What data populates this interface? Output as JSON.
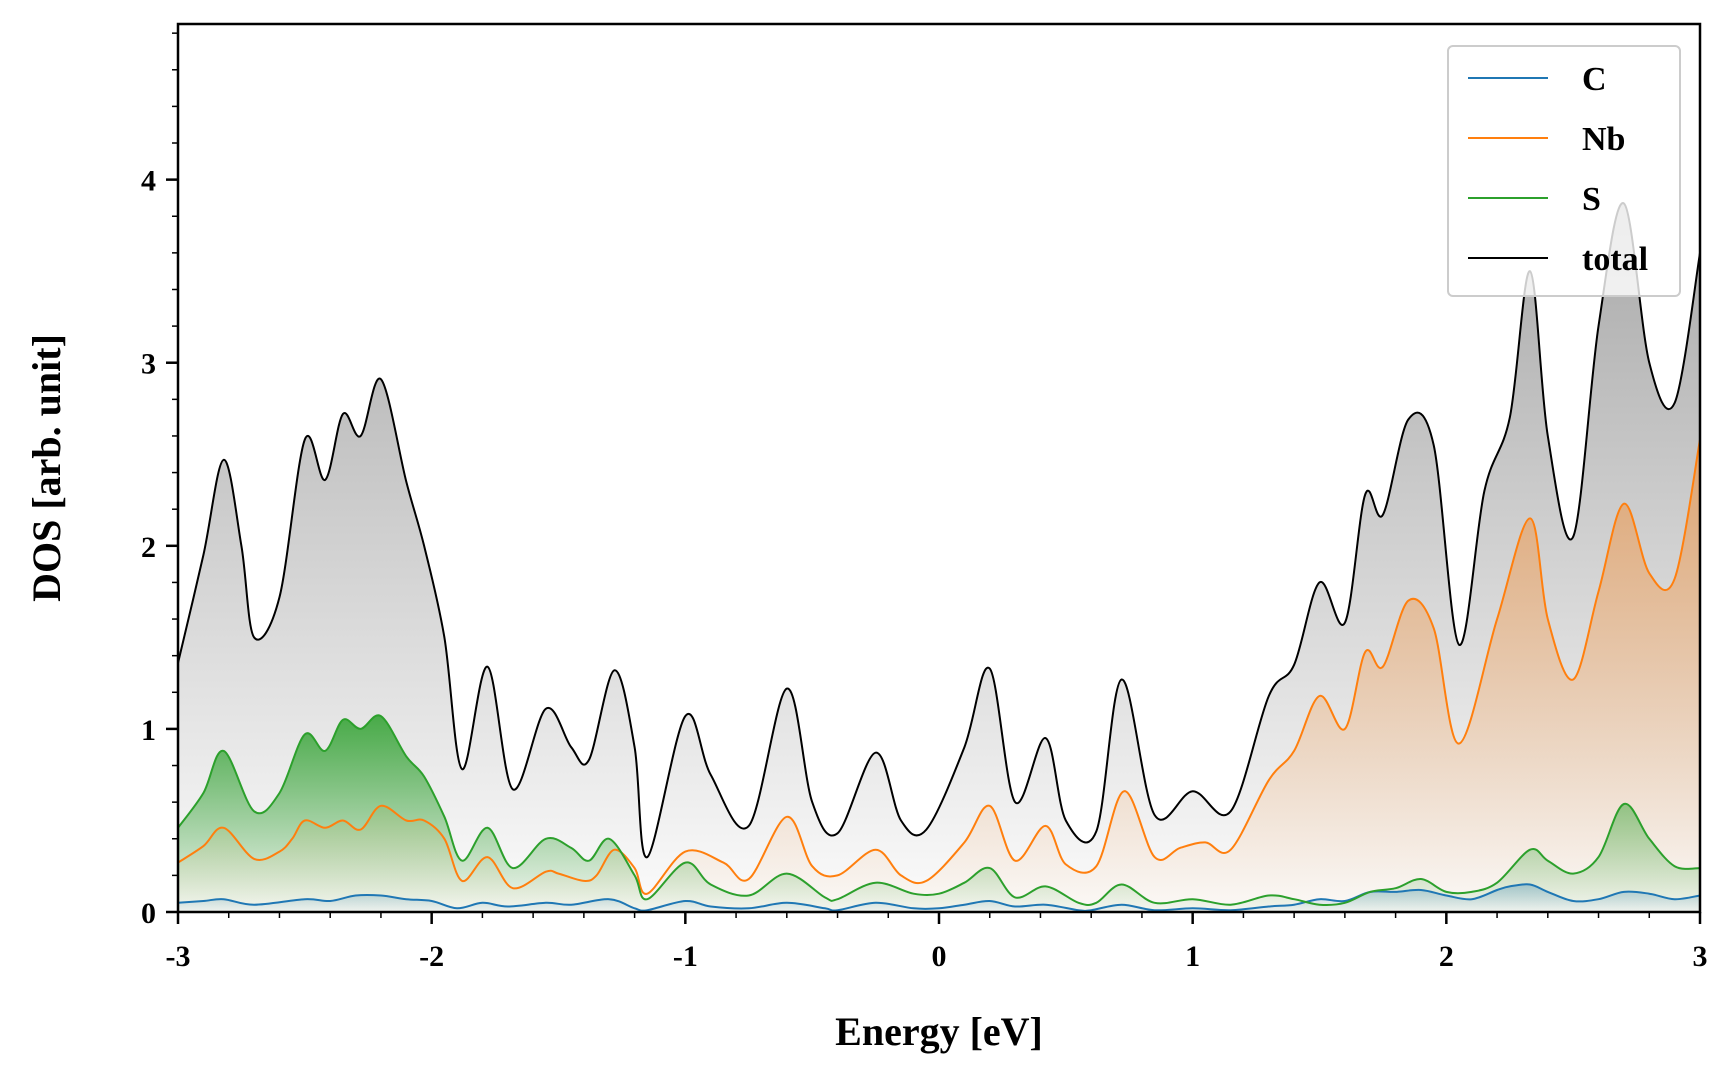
{
  "chart_data": {
    "type": "area",
    "xlabel": "Energy [eV]",
    "ylabel": "DOS [arb. unit]",
    "xlim": [
      -3,
      3
    ],
    "ylim": [
      0,
      4.85
    ],
    "x_ticks": [
      "-3",
      "-2",
      "-1",
      "0",
      "1",
      "2",
      "3"
    ],
    "y_ticks": [
      "0",
      "1",
      "2",
      "3",
      "4"
    ],
    "legend_position": "top-right",
    "grid": false,
    "series": [
      {
        "name": "C",
        "color": "#1f77b4",
        "points": [
          [
            -3,
            0.05
          ],
          [
            -2.9,
            0.06
          ],
          [
            -2.82,
            0.07
          ],
          [
            -2.7,
            0.04
          ],
          [
            -2.5,
            0.07
          ],
          [
            -2.4,
            0.06
          ],
          [
            -2.3,
            0.09
          ],
          [
            -2.2,
            0.09
          ],
          [
            -2.1,
            0.07
          ],
          [
            -2.0,
            0.06
          ],
          [
            -1.9,
            0.02
          ],
          [
            -1.8,
            0.05
          ],
          [
            -1.7,
            0.03
          ],
          [
            -1.55,
            0.05
          ],
          [
            -1.45,
            0.04
          ],
          [
            -1.3,
            0.07
          ],
          [
            -1.2,
            0.02
          ],
          [
            -1.15,
            0.01
          ],
          [
            -1.0,
            0.06
          ],
          [
            -0.9,
            0.03
          ],
          [
            -0.75,
            0.02
          ],
          [
            -0.6,
            0.05
          ],
          [
            -0.45,
            0.02
          ],
          [
            -0.4,
            0.01
          ],
          [
            -0.25,
            0.05
          ],
          [
            -0.1,
            0.02
          ],
          [
            0,
            0.02
          ],
          [
            0.1,
            0.04
          ],
          [
            0.2,
            0.06
          ],
          [
            0.3,
            0.03
          ],
          [
            0.42,
            0.04
          ],
          [
            0.55,
            0.01
          ],
          [
            0.6,
            0.01
          ],
          [
            0.72,
            0.04
          ],
          [
            0.85,
            0.01
          ],
          [
            1.0,
            0.02
          ],
          [
            1.15,
            0.01
          ],
          [
            1.3,
            0.03
          ],
          [
            1.4,
            0.04
          ],
          [
            1.5,
            0.07
          ],
          [
            1.6,
            0.06
          ],
          [
            1.7,
            0.11
          ],
          [
            1.8,
            0.11
          ],
          [
            1.9,
            0.12
          ],
          [
            2.0,
            0.09
          ],
          [
            2.1,
            0.07
          ],
          [
            2.2,
            0.12
          ],
          [
            2.25,
            0.14
          ],
          [
            2.33,
            0.15
          ],
          [
            2.4,
            0.11
          ],
          [
            2.5,
            0.06
          ],
          [
            2.6,
            0.07
          ],
          [
            2.7,
            0.11
          ],
          [
            2.8,
            0.1
          ],
          [
            2.9,
            0.07
          ],
          [
            3.0,
            0.09
          ]
        ]
      },
      {
        "name": "Nb",
        "color": "#ff7f0e",
        "points": [
          [
            -3,
            0.27
          ],
          [
            -2.9,
            0.36
          ],
          [
            -2.82,
            0.46
          ],
          [
            -2.7,
            0.29
          ],
          [
            -2.6,
            0.33
          ],
          [
            -2.55,
            0.4
          ],
          [
            -2.5,
            0.5
          ],
          [
            -2.42,
            0.46
          ],
          [
            -2.35,
            0.5
          ],
          [
            -2.28,
            0.45
          ],
          [
            -2.2,
            0.58
          ],
          [
            -2.1,
            0.5
          ],
          [
            -2.03,
            0.5
          ],
          [
            -1.95,
            0.4
          ],
          [
            -1.88,
            0.17
          ],
          [
            -1.78,
            0.3
          ],
          [
            -1.68,
            0.13
          ],
          [
            -1.55,
            0.22
          ],
          [
            -1.5,
            0.21
          ],
          [
            -1.4,
            0.17
          ],
          [
            -1.35,
            0.2
          ],
          [
            -1.28,
            0.34
          ],
          [
            -1.2,
            0.24
          ],
          [
            -1.15,
            0.1
          ],
          [
            -1.0,
            0.33
          ],
          [
            -0.85,
            0.27
          ],
          [
            -0.75,
            0.18
          ],
          [
            -0.6,
            0.52
          ],
          [
            -0.5,
            0.25
          ],
          [
            -0.4,
            0.2
          ],
          [
            -0.25,
            0.34
          ],
          [
            -0.15,
            0.2
          ],
          [
            -0.05,
            0.17
          ],
          [
            0.1,
            0.38
          ],
          [
            0.2,
            0.58
          ],
          [
            0.3,
            0.28
          ],
          [
            0.42,
            0.47
          ],
          [
            0.5,
            0.26
          ],
          [
            0.62,
            0.25
          ],
          [
            0.73,
            0.66
          ],
          [
            0.85,
            0.3
          ],
          [
            0.95,
            0.35
          ],
          [
            1.05,
            0.38
          ],
          [
            1.15,
            0.34
          ],
          [
            1.3,
            0.72
          ],
          [
            1.4,
            0.88
          ],
          [
            1.5,
            1.18
          ],
          [
            1.6,
            1.0
          ],
          [
            1.68,
            1.42
          ],
          [
            1.75,
            1.34
          ],
          [
            1.85,
            1.7
          ],
          [
            1.95,
            1.55
          ],
          [
            2.05,
            0.92
          ],
          [
            2.2,
            1.6
          ],
          [
            2.33,
            2.15
          ],
          [
            2.4,
            1.6
          ],
          [
            2.5,
            1.27
          ],
          [
            2.6,
            1.75
          ],
          [
            2.7,
            2.23
          ],
          [
            2.8,
            1.85
          ],
          [
            2.9,
            1.82
          ],
          [
            3.0,
            2.58
          ]
        ]
      },
      {
        "name": "S",
        "color": "#2ca02c",
        "points": [
          [
            -3,
            0.46
          ],
          [
            -2.9,
            0.65
          ],
          [
            -2.82,
            0.88
          ],
          [
            -2.7,
            0.55
          ],
          [
            -2.6,
            0.65
          ],
          [
            -2.5,
            0.97
          ],
          [
            -2.42,
            0.88
          ],
          [
            -2.35,
            1.05
          ],
          [
            -2.28,
            1.0
          ],
          [
            -2.2,
            1.07
          ],
          [
            -2.1,
            0.85
          ],
          [
            -2.03,
            0.74
          ],
          [
            -1.95,
            0.52
          ],
          [
            -1.88,
            0.28
          ],
          [
            -1.78,
            0.46
          ],
          [
            -1.68,
            0.24
          ],
          [
            -1.55,
            0.4
          ],
          [
            -1.45,
            0.35
          ],
          [
            -1.38,
            0.28
          ],
          [
            -1.3,
            0.4
          ],
          [
            -1.2,
            0.2
          ],
          [
            -1.15,
            0.07
          ],
          [
            -1.0,
            0.27
          ],
          [
            -0.9,
            0.15
          ],
          [
            -0.75,
            0.09
          ],
          [
            -0.6,
            0.21
          ],
          [
            -0.45,
            0.08
          ],
          [
            -0.4,
            0.07
          ],
          [
            -0.25,
            0.16
          ],
          [
            -0.1,
            0.1
          ],
          [
            0,
            0.1
          ],
          [
            0.1,
            0.16
          ],
          [
            0.2,
            0.24
          ],
          [
            0.3,
            0.08
          ],
          [
            0.42,
            0.14
          ],
          [
            0.55,
            0.05
          ],
          [
            0.62,
            0.05
          ],
          [
            0.72,
            0.15
          ],
          [
            0.85,
            0.05
          ],
          [
            1.0,
            0.07
          ],
          [
            1.15,
            0.04
          ],
          [
            1.3,
            0.09
          ],
          [
            1.4,
            0.07
          ],
          [
            1.5,
            0.04
          ],
          [
            1.6,
            0.05
          ],
          [
            1.7,
            0.11
          ],
          [
            1.8,
            0.13
          ],
          [
            1.9,
            0.18
          ],
          [
            2.0,
            0.11
          ],
          [
            2.1,
            0.11
          ],
          [
            2.2,
            0.16
          ],
          [
            2.33,
            0.34
          ],
          [
            2.4,
            0.28
          ],
          [
            2.5,
            0.21
          ],
          [
            2.6,
            0.3
          ],
          [
            2.7,
            0.59
          ],
          [
            2.8,
            0.4
          ],
          [
            2.9,
            0.25
          ],
          [
            3.0,
            0.24
          ]
        ]
      },
      {
        "name": "total",
        "color": "#000000",
        "points": [
          [
            -3,
            1.36
          ],
          [
            -2.9,
            1.95
          ],
          [
            -2.82,
            2.47
          ],
          [
            -2.75,
            2.0
          ],
          [
            -2.7,
            1.5
          ],
          [
            -2.6,
            1.72
          ],
          [
            -2.5,
            2.58
          ],
          [
            -2.42,
            2.36
          ],
          [
            -2.35,
            2.72
          ],
          [
            -2.28,
            2.6
          ],
          [
            -2.2,
            2.91
          ],
          [
            -2.1,
            2.35
          ],
          [
            -2.03,
            2.0
          ],
          [
            -1.95,
            1.5
          ],
          [
            -1.88,
            0.78
          ],
          [
            -1.78,
            1.34
          ],
          [
            -1.68,
            0.67
          ],
          [
            -1.55,
            1.11
          ],
          [
            -1.45,
            0.9
          ],
          [
            -1.38,
            0.83
          ],
          [
            -1.28,
            1.32
          ],
          [
            -1.2,
            0.9
          ],
          [
            -1.15,
            0.3
          ],
          [
            -1.0,
            1.07
          ],
          [
            -0.9,
            0.75
          ],
          [
            -0.75,
            0.47
          ],
          [
            -0.6,
            1.22
          ],
          [
            -0.5,
            0.6
          ],
          [
            -0.4,
            0.43
          ],
          [
            -0.25,
            0.87
          ],
          [
            -0.15,
            0.5
          ],
          [
            -0.05,
            0.45
          ],
          [
            0.1,
            0.9
          ],
          [
            0.2,
            1.33
          ],
          [
            0.3,
            0.6
          ],
          [
            0.42,
            0.95
          ],
          [
            0.5,
            0.5
          ],
          [
            0.62,
            0.44
          ],
          [
            0.72,
            1.27
          ],
          [
            0.85,
            0.53
          ],
          [
            1.0,
            0.66
          ],
          [
            1.15,
            0.55
          ],
          [
            1.3,
            1.18
          ],
          [
            1.4,
            1.35
          ],
          [
            1.5,
            1.8
          ],
          [
            1.6,
            1.58
          ],
          [
            1.68,
            2.28
          ],
          [
            1.75,
            2.17
          ],
          [
            1.85,
            2.69
          ],
          [
            1.95,
            2.55
          ],
          [
            2.05,
            1.46
          ],
          [
            2.15,
            2.3
          ],
          [
            2.25,
            2.7
          ],
          [
            2.33,
            3.5
          ],
          [
            2.4,
            2.6
          ],
          [
            2.5,
            2.05
          ],
          [
            2.6,
            3.2
          ],
          [
            2.7,
            3.87
          ],
          [
            2.8,
            3.0
          ],
          [
            2.9,
            2.78
          ],
          [
            3.0,
            3.6
          ]
        ]
      }
    ]
  }
}
